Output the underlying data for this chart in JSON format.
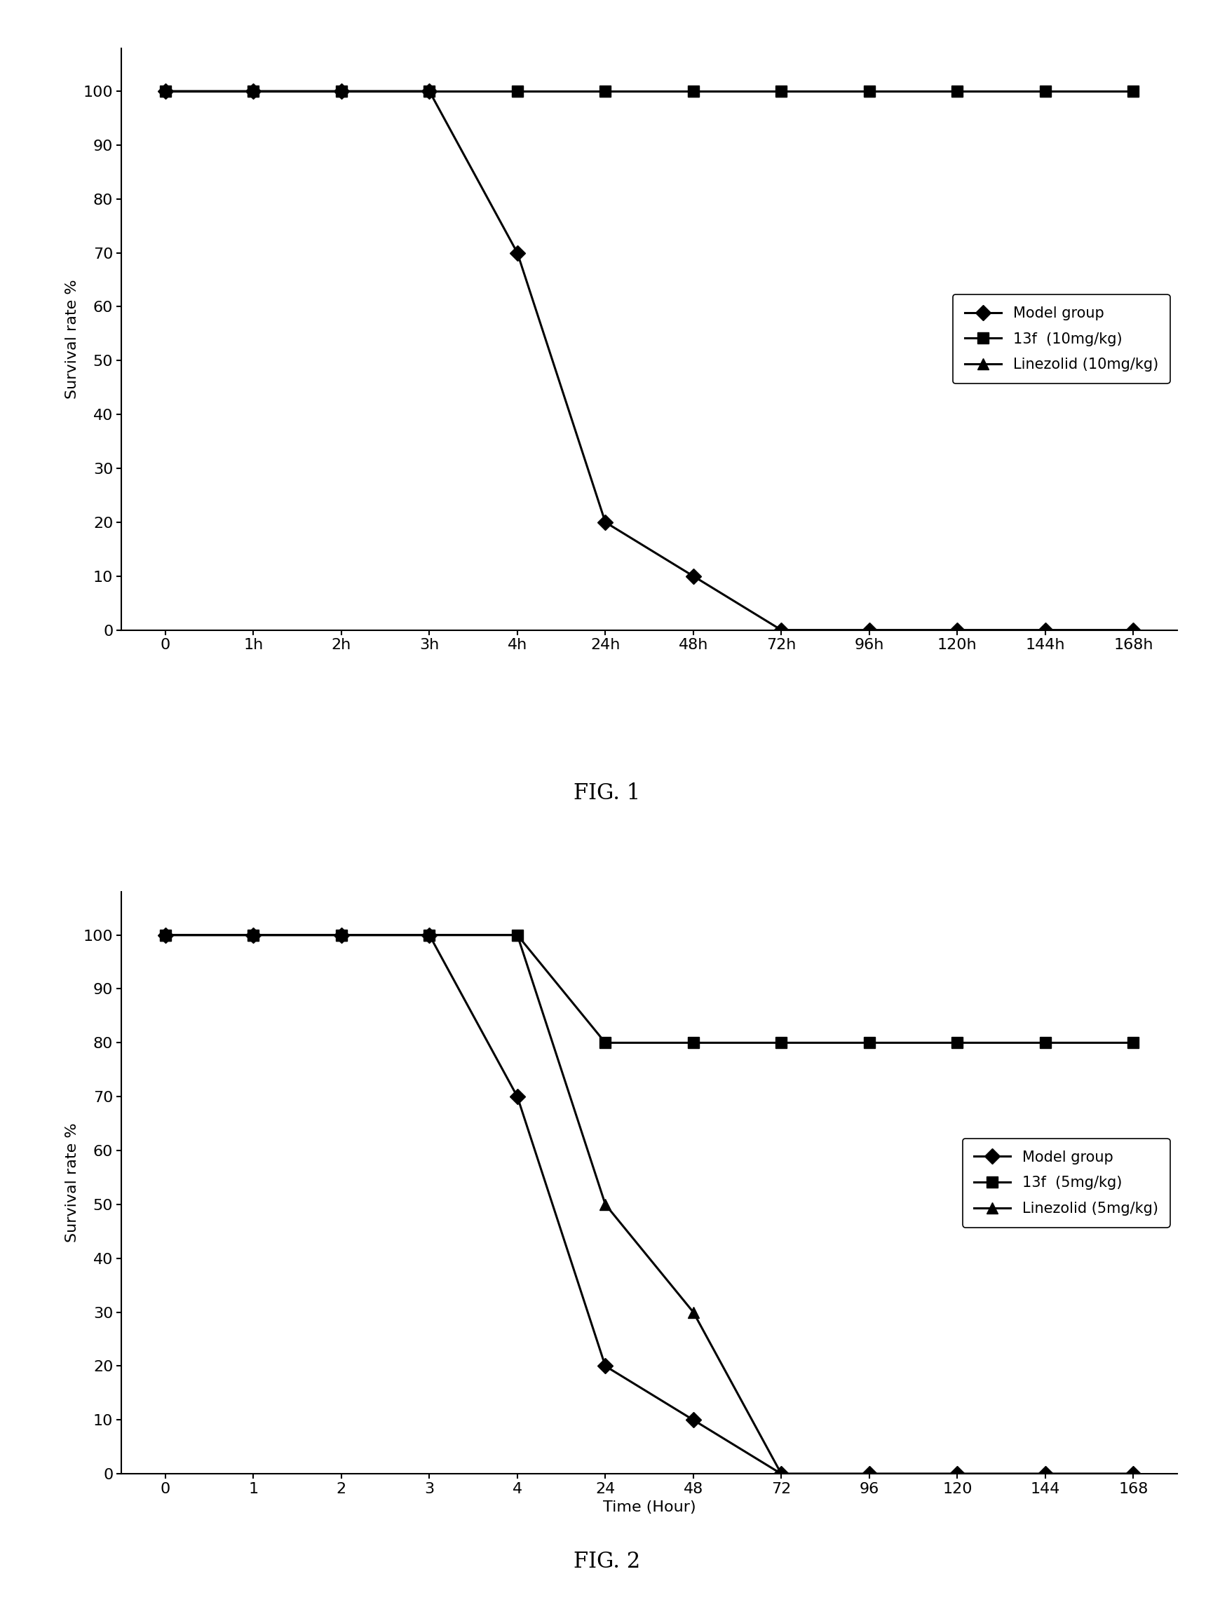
{
  "fig1": {
    "x_positions": [
      0,
      1,
      2,
      3,
      4,
      5,
      6,
      7,
      8,
      9,
      10,
      11
    ],
    "x_labels": [
      "0",
      "1h",
      "2h",
      "3h",
      "4h",
      "24h",
      "48h",
      "72h",
      "96h",
      "120h",
      "144h",
      "168h"
    ],
    "model_group": [
      100,
      100,
      100,
      100,
      70,
      20,
      10,
      0,
      0,
      0,
      0,
      0
    ],
    "drug_13f": [
      100,
      100,
      100,
      100,
      100,
      100,
      100,
      100,
      100,
      100,
      100,
      100
    ],
    "linezolid": [
      100,
      100,
      100,
      100,
      100,
      100,
      100,
      100,
      100,
      100,
      100,
      100
    ],
    "ylabel": "Survival rate %",
    "fig_label": "FIG. 1",
    "legend": [
      "Model group",
      "13f  (10mg/kg)",
      "Linezolid (10mg/kg)"
    ],
    "ylim": [
      0,
      108
    ],
    "yticks": [
      0,
      10,
      20,
      30,
      40,
      50,
      60,
      70,
      80,
      90,
      100
    ]
  },
  "fig2": {
    "x_positions": [
      0,
      1,
      2,
      3,
      4,
      5,
      6,
      7,
      8,
      9,
      10,
      11
    ],
    "x_labels": [
      "0",
      "1",
      "2",
      "3",
      "4",
      "24",
      "48",
      "72",
      "96",
      "120",
      "144",
      "168"
    ],
    "model_group": [
      100,
      100,
      100,
      100,
      70,
      20,
      10,
      0,
      0,
      0,
      0,
      0
    ],
    "drug_13f": [
      100,
      100,
      100,
      100,
      100,
      80,
      80,
      80,
      80,
      80,
      80,
      80
    ],
    "linezolid": [
      100,
      100,
      100,
      100,
      100,
      50,
      30,
      0,
      0,
      0,
      0,
      0
    ],
    "ylabel": "Survival rate %",
    "xlabel": "Time (Hour)",
    "fig_label": "FIG. 2",
    "legend": [
      "Model group",
      "13f  (5mg/kg)",
      "Linezolid (5mg/kg)"
    ],
    "ylim": [
      0,
      108
    ],
    "yticks": [
      0,
      10,
      20,
      30,
      40,
      50,
      60,
      70,
      80,
      90,
      100
    ]
  },
  "line_color": "#000000",
  "marker_model": "D",
  "marker_13f": "s",
  "marker_linezolid": "^",
  "markersize": 11,
  "linewidth": 2.2,
  "bg_color": "#ffffff",
  "tick_fontsize": 16,
  "label_fontsize": 16,
  "legend_fontsize": 15,
  "fig_label_fontsize": 22
}
